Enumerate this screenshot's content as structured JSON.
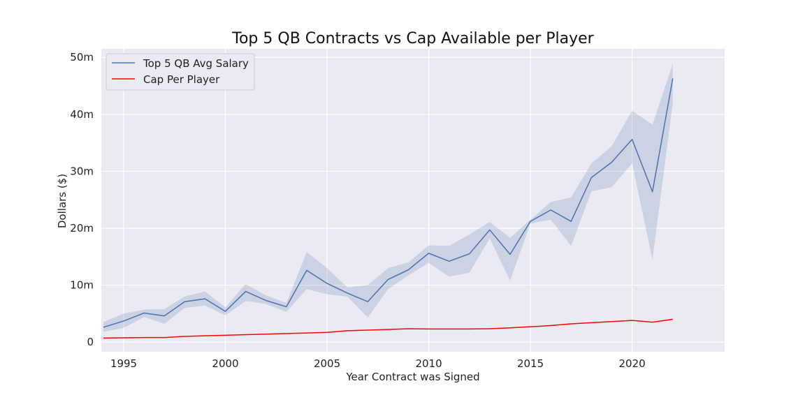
{
  "chart_data": {
    "type": "line",
    "title": "Top 5 QB Contracts vs Cap Available per Player",
    "xlabel": "Year Contract was Signed",
    "ylabel": "Dollars ($)",
    "xlim": [
      1993.9,
      2024.55
    ],
    "ylim": [
      -1.7,
      51.5
    ],
    "x_ticks": [
      1995,
      2000,
      2005,
      2010,
      2015,
      2020
    ],
    "x_tick_labels": [
      "1995",
      "2000",
      "2005",
      "2010",
      "2015",
      "2020"
    ],
    "y_ticks": [
      0,
      10,
      20,
      30,
      40,
      50
    ],
    "y_tick_labels": [
      "0",
      "10m",
      "20m",
      "30m",
      "40m",
      "50m"
    ],
    "grid": true,
    "legend_position": "top-left",
    "x": [
      1994,
      1995,
      1996,
      1997,
      1998,
      1999,
      2000,
      2001,
      2002,
      2003,
      2004,
      2005,
      2006,
      2007,
      2008,
      2009,
      2010,
      2011,
      2012,
      2013,
      2014,
      2015,
      2016,
      2017,
      2018,
      2019,
      2020,
      2021,
      2022
    ],
    "series": [
      {
        "name": "Top 5 QB Avg Salary",
        "color": "#4c72b0",
        "values": [
          2.6,
          3.7,
          5.1,
          4.6,
          7.1,
          7.6,
          5.4,
          8.9,
          7.3,
          6.2,
          12.6,
          10.3,
          8.6,
          7.1,
          11.0,
          12.7,
          15.6,
          14.2,
          15.5,
          19.7,
          15.4,
          21.2,
          23.2,
          21.2,
          28.9,
          31.6,
          35.6,
          26.4,
          46.3
        ],
        "ci_upper": [
          3.5,
          5.0,
          5.7,
          5.8,
          8.0,
          8.9,
          6.1,
          10.2,
          8.2,
          6.9,
          15.8,
          13.0,
          9.6,
          10.0,
          13.0,
          14.0,
          17.0,
          16.9,
          18.9,
          21.1,
          18.3,
          21.5,
          24.6,
          25.4,
          31.4,
          34.4,
          40.6,
          38.2,
          48.9
        ],
        "ci_lower": [
          1.8,
          2.5,
          4.4,
          3.2,
          6.0,
          6.4,
          4.7,
          7.2,
          6.7,
          5.3,
          9.3,
          8.4,
          8.0,
          4.3,
          9.3,
          11.7,
          13.9,
          11.5,
          12.2,
          18.2,
          10.8,
          20.8,
          21.5,
          16.9,
          26.5,
          27.2,
          31.4,
          14.5,
          42.0
        ]
      },
      {
        "name": "Cap Per Player",
        "color": "#ff0000",
        "values": [
          0.7,
          0.75,
          0.8,
          0.8,
          1.0,
          1.1,
          1.2,
          1.3,
          1.4,
          1.5,
          1.6,
          1.7,
          2.0,
          2.1,
          2.2,
          2.35,
          2.3,
          2.3,
          2.3,
          2.35,
          2.5,
          2.7,
          2.9,
          3.2,
          3.4,
          3.6,
          3.8,
          3.5,
          4.0
        ]
      }
    ]
  }
}
